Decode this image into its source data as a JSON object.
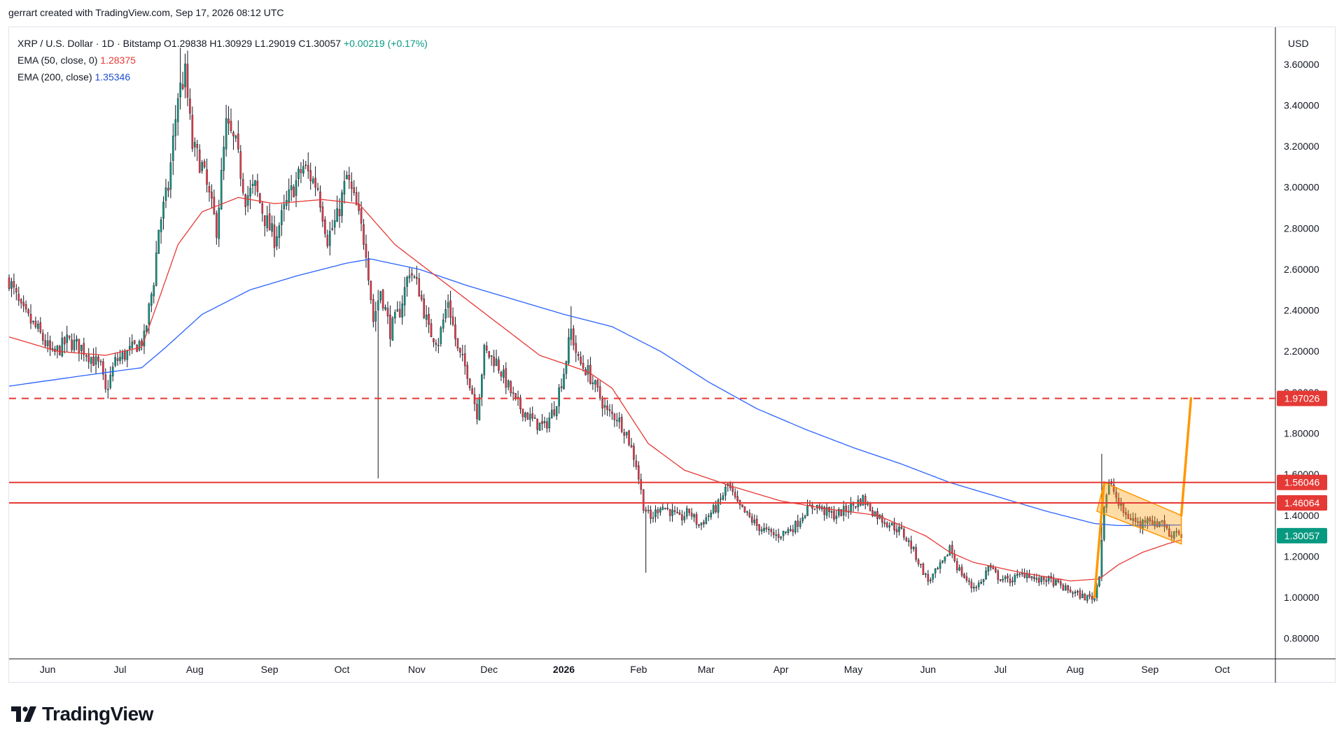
{
  "header": {
    "caption": "gerrart created with TradingView.com, Sep 17, 2026 08:12 UTC"
  },
  "legend": {
    "symbol": "XRP / U.S. Dollar · 1D · Bitstamp",
    "open": "O1.29838",
    "high": "H1.30929",
    "low": "L1.29019",
    "close": "C1.30057",
    "change": "+0.00219 (+0.17%)",
    "ema50_label": "EMA (50, close, 0)",
    "ema50_value": "1.28375",
    "ema200_label": "EMA (200, close)",
    "ema200_value": "1.35346"
  },
  "currency_label": "USD",
  "brand": {
    "name": "TradingView"
  },
  "colors": {
    "up": "#089981",
    "down": "#f23645",
    "ema50": "#e53935",
    "ema200": "#2962ff",
    "resistance": "#e53935",
    "projection": "#ff9800"
  },
  "chart_data": {
    "type": "candlestick",
    "title": "XRP / U.S. Dollar · 1D · Bitstamp",
    "ylabel": "USD",
    "ylim": [
      0.7,
      3.78
    ],
    "y_ticks": [
      "0.80000",
      "1.00000",
      "1.20000",
      "1.40000",
      "1.60000",
      "1.80000",
      "2.00000",
      "2.20000",
      "2.40000",
      "2.60000",
      "2.80000",
      "3.00000",
      "3.20000",
      "3.40000",
      "3.60000"
    ],
    "x_ticks": [
      {
        "label": "Jun",
        "t": 16
      },
      {
        "label": "Jul",
        "t": 46
      },
      {
        "label": "Aug",
        "t": 77
      },
      {
        "label": "Sep",
        "t": 108
      },
      {
        "label": "Oct",
        "t": 138
      },
      {
        "label": "Nov",
        "t": 169
      },
      {
        "label": "Dec",
        "t": 199
      },
      {
        "label": "2026",
        "t": 230
      },
      {
        "label": "Feb",
        "t": 261
      },
      {
        "label": "Mar",
        "t": 289
      },
      {
        "label": "Apr",
        "t": 320
      },
      {
        "label": "May",
        "t": 350
      },
      {
        "label": "Jun",
        "t": 381
      },
      {
        "label": "Jul",
        "t": 411
      },
      {
        "label": "Aug",
        "t": 442
      },
      {
        "label": "Sep",
        "t": 473
      },
      {
        "label": "Oct",
        "t": 503
      }
    ],
    "x_range": [
      0,
      525
    ],
    "price_anchors": [
      [
        0,
        2.55
      ],
      [
        5,
        2.4
      ],
      [
        12,
        2.3
      ],
      [
        18,
        2.18
      ],
      [
        24,
        2.25
      ],
      [
        30,
        2.22
      ],
      [
        38,
        2.12
      ],
      [
        40,
        2.0
      ],
      [
        44,
        2.15
      ],
      [
        50,
        2.2
      ],
      [
        56,
        2.26
      ],
      [
        60,
        2.55
      ],
      [
        62,
        2.8
      ],
      [
        66,
        3.0
      ],
      [
        70,
        3.45
      ],
      [
        73,
        3.55
      ],
      [
        76,
        3.2
      ],
      [
        80,
        3.1
      ],
      [
        84,
        2.9
      ],
      [
        86,
        2.8
      ],
      [
        90,
        3.3
      ],
      [
        94,
        3.2
      ],
      [
        98,
        2.95
      ],
      [
        102,
        3.0
      ],
      [
        106,
        2.85
      ],
      [
        110,
        2.75
      ],
      [
        116,
        2.95
      ],
      [
        122,
        3.1
      ],
      [
        128,
        3.0
      ],
      [
        132,
        2.75
      ],
      [
        136,
        2.85
      ],
      [
        140,
        3.05
      ],
      [
        144,
        2.9
      ],
      [
        148,
        2.7
      ],
      [
        151,
        2.35
      ],
      [
        154,
        2.5
      ],
      [
        158,
        2.3
      ],
      [
        162,
        2.4
      ],
      [
        166,
        2.6
      ],
      [
        170,
        2.5
      ],
      [
        174,
        2.3
      ],
      [
        178,
        2.25
      ],
      [
        182,
        2.45
      ],
      [
        186,
        2.2
      ],
      [
        190,
        2.1
      ],
      [
        194,
        1.9
      ],
      [
        197,
        2.2
      ],
      [
        202,
        2.15
      ],
      [
        206,
        2.05
      ],
      [
        210,
        1.95
      ],
      [
        214,
        1.9
      ],
      [
        218,
        1.85
      ],
      [
        222,
        1.83
      ],
      [
        226,
        1.92
      ],
      [
        230,
        2.1
      ],
      [
        233,
        2.3
      ],
      [
        236,
        2.15
      ],
      [
        240,
        2.1
      ],
      [
        244,
        2.0
      ],
      [
        248,
        1.9
      ],
      [
        252,
        1.88
      ],
      [
        256,
        1.8
      ],
      [
        260,
        1.65
      ],
      [
        263,
        1.45
      ],
      [
        266,
        1.38
      ],
      [
        270,
        1.45
      ],
      [
        274,
        1.42
      ],
      [
        278,
        1.38
      ],
      [
        282,
        1.42
      ],
      [
        286,
        1.35
      ],
      [
        290,
        1.4
      ],
      [
        294,
        1.45
      ],
      [
        298,
        1.55
      ],
      [
        302,
        1.45
      ],
      [
        306,
        1.4
      ],
      [
        310,
        1.35
      ],
      [
        314,
        1.32
      ],
      [
        318,
        1.3
      ],
      [
        322,
        1.32
      ],
      [
        326,
        1.35
      ],
      [
        330,
        1.42
      ],
      [
        334,
        1.45
      ],
      [
        338,
        1.42
      ],
      [
        342,
        1.4
      ],
      [
        346,
        1.42
      ],
      [
        350,
        1.45
      ],
      [
        354,
        1.48
      ],
      [
        358,
        1.42
      ],
      [
        362,
        1.38
      ],
      [
        366,
        1.35
      ],
      [
        370,
        1.32
      ],
      [
        374,
        1.25
      ],
      [
        378,
        1.15
      ],
      [
        381,
        1.08
      ],
      [
        384,
        1.12
      ],
      [
        388,
        1.18
      ],
      [
        390,
        1.25
      ],
      [
        393,
        1.15
      ],
      [
        396,
        1.1
      ],
      [
        399,
        1.05
      ],
      [
        403,
        1.07
      ],
      [
        406,
        1.15
      ],
      [
        410,
        1.1
      ],
      [
        414,
        1.08
      ],
      [
        418,
        1.1
      ],
      [
        422,
        1.12
      ],
      [
        426,
        1.08
      ],
      [
        430,
        1.09
      ],
      [
        434,
        1.07
      ],
      [
        438,
        1.04
      ],
      [
        442,
        1.02
      ],
      [
        446,
        1.0
      ],
      [
        450,
        1.0
      ],
      [
        452,
        1.12
      ],
      [
        454,
        1.45
      ],
      [
        456,
        1.55
      ],
      [
        458,
        1.52
      ],
      [
        460,
        1.45
      ],
      [
        463,
        1.4
      ],
      [
        466,
        1.38
      ],
      [
        469,
        1.35
      ],
      [
        472,
        1.4
      ],
      [
        475,
        1.35
      ],
      [
        478,
        1.38
      ],
      [
        481,
        1.3
      ],
      [
        484,
        1.33
      ],
      [
        486,
        1.3
      ]
    ],
    "spikes": [
      {
        "t": 153,
        "low": 1.58
      },
      {
        "t": 264,
        "low": 1.12
      },
      {
        "t": 453,
        "high": 1.7
      },
      {
        "t": 233,
        "high": 2.42
      },
      {
        "t": 71,
        "high": 3.68
      }
    ],
    "ema50_anchors": [
      [
        0,
        2.27
      ],
      [
        20,
        2.2
      ],
      [
        40,
        2.18
      ],
      [
        55,
        2.22
      ],
      [
        62,
        2.45
      ],
      [
        70,
        2.72
      ],
      [
        80,
        2.88
      ],
      [
        95,
        2.95
      ],
      [
        110,
        2.92
      ],
      [
        130,
        2.94
      ],
      [
        145,
        2.92
      ],
      [
        160,
        2.72
      ],
      [
        180,
        2.54
      ],
      [
        200,
        2.36
      ],
      [
        220,
        2.18
      ],
      [
        240,
        2.1
      ],
      [
        250,
        2.02
      ],
      [
        265,
        1.75
      ],
      [
        280,
        1.62
      ],
      [
        300,
        1.54
      ],
      [
        320,
        1.47
      ],
      [
        340,
        1.43
      ],
      [
        360,
        1.4
      ],
      [
        380,
        1.3
      ],
      [
        390,
        1.22
      ],
      [
        400,
        1.17
      ],
      [
        420,
        1.12
      ],
      [
        440,
        1.08
      ],
      [
        452,
        1.09
      ],
      [
        460,
        1.16
      ],
      [
        470,
        1.22
      ],
      [
        480,
        1.26
      ],
      [
        486,
        1.28
      ]
    ],
    "ema200_anchors": [
      [
        0,
        2.03
      ],
      [
        30,
        2.08
      ],
      [
        55,
        2.12
      ],
      [
        65,
        2.22
      ],
      [
        80,
        2.38
      ],
      [
        100,
        2.5
      ],
      [
        120,
        2.57
      ],
      [
        140,
        2.63
      ],
      [
        150,
        2.65
      ],
      [
        170,
        2.6
      ],
      [
        190,
        2.52
      ],
      [
        210,
        2.45
      ],
      [
        230,
        2.38
      ],
      [
        250,
        2.32
      ],
      [
        270,
        2.2
      ],
      [
        290,
        2.05
      ],
      [
        310,
        1.92
      ],
      [
        330,
        1.82
      ],
      [
        350,
        1.73
      ],
      [
        370,
        1.65
      ],
      [
        390,
        1.56
      ],
      [
        410,
        1.49
      ],
      [
        430,
        1.42
      ],
      [
        450,
        1.36
      ],
      [
        460,
        1.35
      ],
      [
        486,
        1.353
      ]
    ],
    "levels": [
      {
        "label": "1.97026",
        "value": 1.97026,
        "style": "dashed"
      },
      {
        "label": "1.56046",
        "value": 1.56046,
        "style": "solid"
      },
      {
        "label": "1.46064",
        "value": 1.46064,
        "style": "solid"
      }
    ],
    "last_price": {
      "label": "1.30057",
      "value": 1.30057
    },
    "flag_channel": {
      "upper": [
        [
          454,
          1.56
        ],
        [
          486,
          1.4
        ]
      ],
      "lower": [
        [
          451,
          1.42
        ],
        [
          486,
          1.26
        ]
      ]
    },
    "projection": [
      [
        [
          450,
          1.0
        ],
        [
          454,
          1.56
        ]
      ],
      [
        [
          486,
          1.4
        ],
        [
          490,
          1.97
        ]
      ]
    ]
  }
}
